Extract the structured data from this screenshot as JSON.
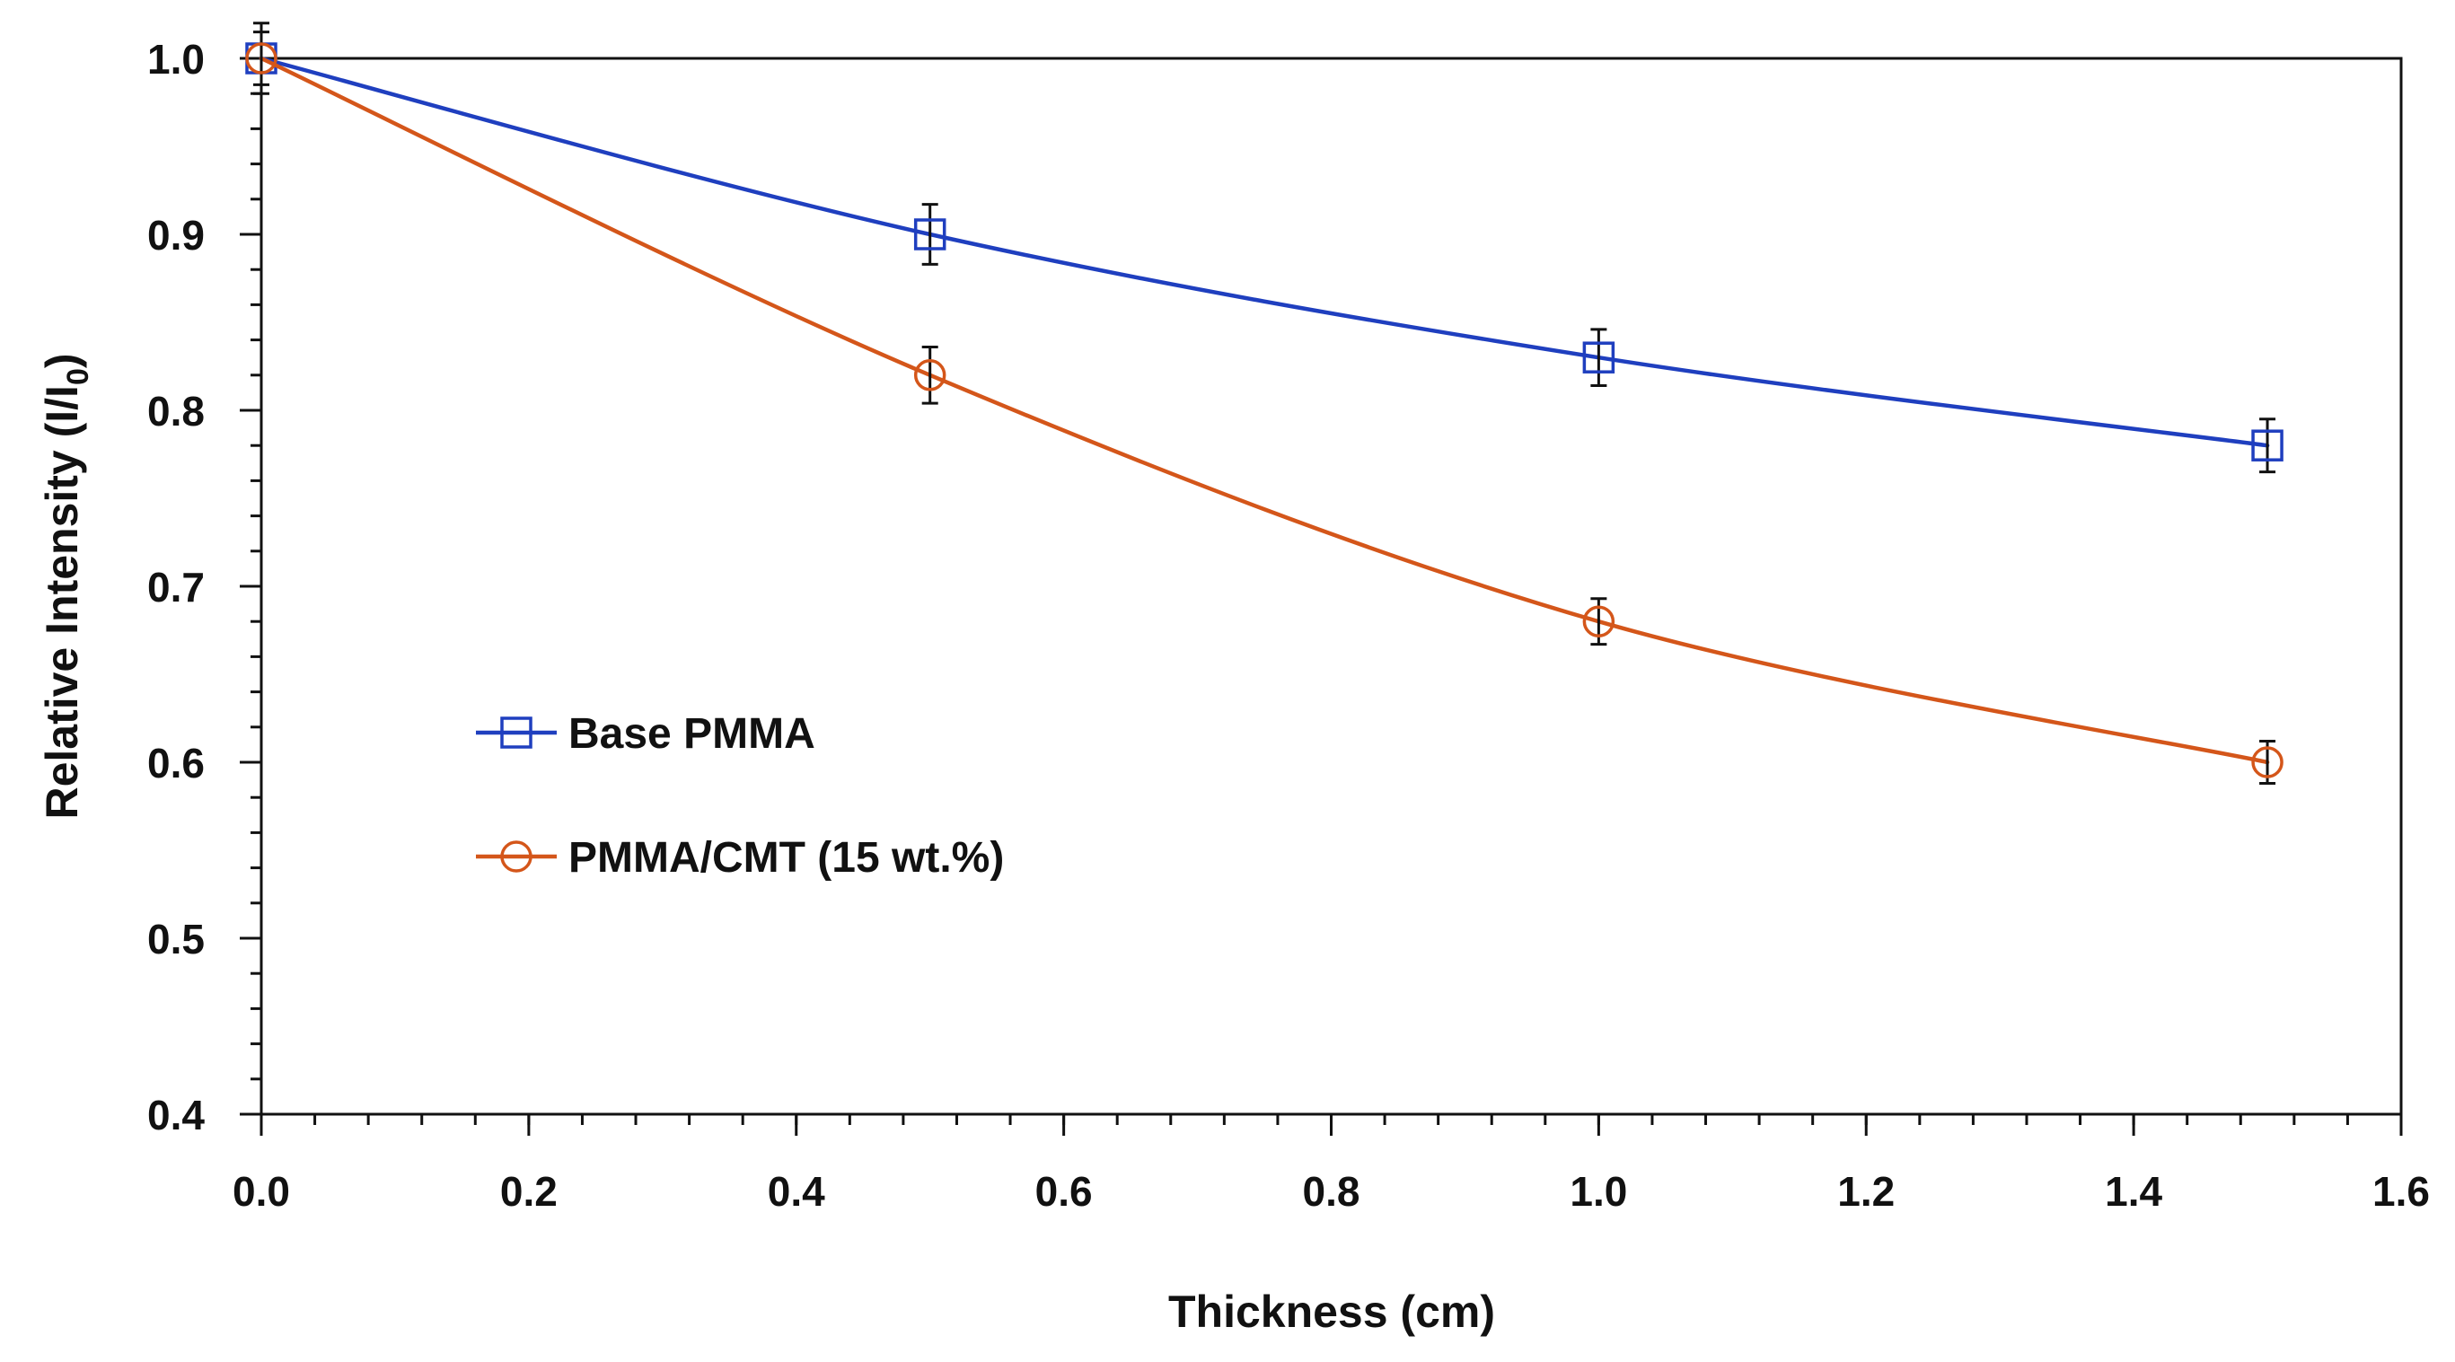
{
  "chart_data": {
    "type": "line",
    "title": "",
    "xlabel": "Thickness (cm)",
    "ylabel": "Relative Intensity (I/I",
    "ylabel_subscript": "0",
    "ylabel_suffix": ")",
    "xlim": [
      0.0,
      1.6
    ],
    "ylim": [
      0.4,
      1.0
    ],
    "x_ticks": [
      0.0,
      0.2,
      0.4,
      0.6,
      0.8,
      1.0,
      1.2,
      1.4,
      1.6
    ],
    "x_tick_labels": [
      "0.0",
      "0.2",
      "0.4",
      "0.6",
      "0.8",
      "1.0",
      "1.2",
      "1.4",
      "1.6"
    ],
    "y_ticks": [
      0.4,
      0.5,
      0.6,
      0.7,
      0.8,
      0.9,
      1.0
    ],
    "y_tick_labels": [
      "0.4",
      "0.5",
      "0.6",
      "0.7",
      "0.8",
      "0.9",
      "1.0"
    ],
    "x_minor_step": 0.04,
    "y_minor_step": 0.02,
    "grid": false,
    "legend_position": "center-left",
    "series": [
      {
        "name": "Base PMMA",
        "color": "#1f3fbf",
        "marker": "square",
        "x": [
          0.0,
          0.5,
          1.0,
          1.5
        ],
        "y": [
          1.0,
          0.9,
          0.83,
          0.78
        ],
        "yerr": [
          0.015,
          0.017,
          0.016,
          0.015
        ]
      },
      {
        "name": "PMMA/CMT (15 wt.%)",
        "color": "#d4561a",
        "marker": "circle",
        "x": [
          0.0,
          0.5,
          1.0,
          1.5
        ],
        "y": [
          1.0,
          0.82,
          0.68,
          0.6
        ],
        "yerr": [
          0.02,
          0.016,
          0.013,
          0.012
        ]
      }
    ]
  }
}
